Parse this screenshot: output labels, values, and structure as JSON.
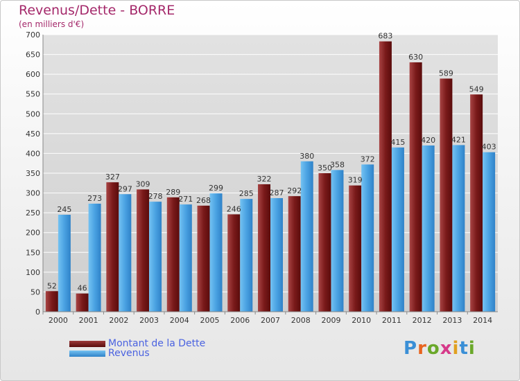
{
  "title": "Revenus/Dette - BORRE",
  "subtitle": "(en milliers d'€)",
  "logo": {
    "letters": [
      "P",
      "r",
      "o",
      "x",
      "i",
      "t",
      "i"
    ],
    "colors": [
      "#3a8fd6",
      "#e8641f",
      "#6aa82a",
      "#d63a8a",
      "#e0a020",
      "#3a8fd6",
      "#6aa82a"
    ]
  },
  "colors": {
    "debt": "#6e1414",
    "debt_light": "#9c3a3a",
    "revenue": "#3d8fd4",
    "revenue_light": "#63b4ec",
    "axis_text": "#333333",
    "grid": "#ffffff"
  },
  "chart_data": {
    "type": "bar",
    "categories": [
      "2000",
      "2001",
      "2002",
      "2003",
      "2004",
      "2005",
      "2006",
      "2007",
      "2008",
      "2009",
      "2010",
      "2011",
      "2012",
      "2013",
      "2014"
    ],
    "series": [
      {
        "name": "Montant de la Dette",
        "values": [
          52,
          46,
          327,
          309,
          289,
          268,
          246,
          322,
          292,
          350,
          319,
          683,
          630,
          589,
          549
        ]
      },
      {
        "name": "Revenus",
        "values": [
          245,
          273,
          297,
          278,
          271,
          299,
          285,
          287,
          380,
          358,
          372,
          415,
          420,
          421,
          403
        ]
      }
    ],
    "ylim": [
      0,
      700
    ],
    "yticks": [
      0,
      50,
      100,
      150,
      200,
      250,
      300,
      350,
      400,
      450,
      500,
      550,
      600,
      650,
      700
    ],
    "grid": true,
    "legend": "bottom-left"
  }
}
